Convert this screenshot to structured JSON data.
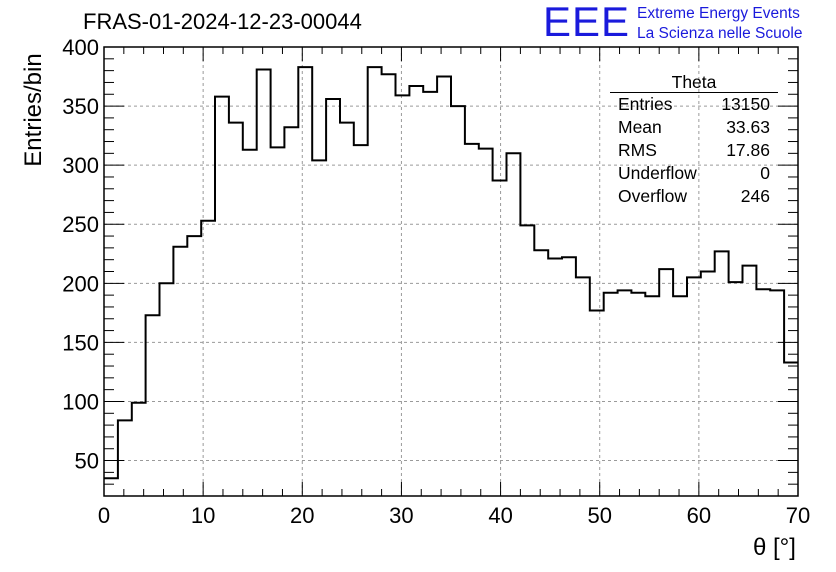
{
  "chart_data": {
    "type": "histogram",
    "title": "FRAS-01-2024-12-23-00044",
    "xlabel": "θ [°]",
    "ylabel": "Entries/bin",
    "xlim": [
      0,
      70
    ],
    "ylim": [
      20,
      400
    ],
    "bin_width": 1.4,
    "grid": true,
    "x_ticks": [
      "0",
      "10",
      "20",
      "30",
      "40",
      "50",
      "60",
      "70"
    ],
    "y_ticks": [
      "50",
      "100",
      "150",
      "200",
      "250",
      "300",
      "350",
      "400"
    ],
    "values": [
      35,
      84,
      99,
      173,
      200,
      231,
      240,
      253,
      358,
      336,
      313,
      381,
      315,
      332,
      383,
      304,
      356,
      336,
      317,
      383,
      377,
      359,
      367,
      362,
      375,
      350,
      318,
      314,
      287,
      310,
      249,
      228,
      221,
      222,
      205,
      177,
      192,
      194,
      192,
      189,
      212,
      189,
      205,
      210,
      227,
      201,
      215,
      195,
      194,
      133
    ]
  },
  "stats_box": {
    "title": "Theta",
    "rows": [
      {
        "label": "Entries",
        "value": "13150"
      },
      {
        "label": "Mean",
        "value": "33.63"
      },
      {
        "label": "RMS",
        "value": "17.86"
      },
      {
        "label": "Underflow",
        "value": "0"
      },
      {
        "label": "Overflow",
        "value": "246"
      }
    ]
  },
  "logo": {
    "mark": "EEE",
    "line1": "Extreme Energy Events",
    "line2": "La Scienza nelle Scuole",
    "color": "#1a1adc"
  }
}
